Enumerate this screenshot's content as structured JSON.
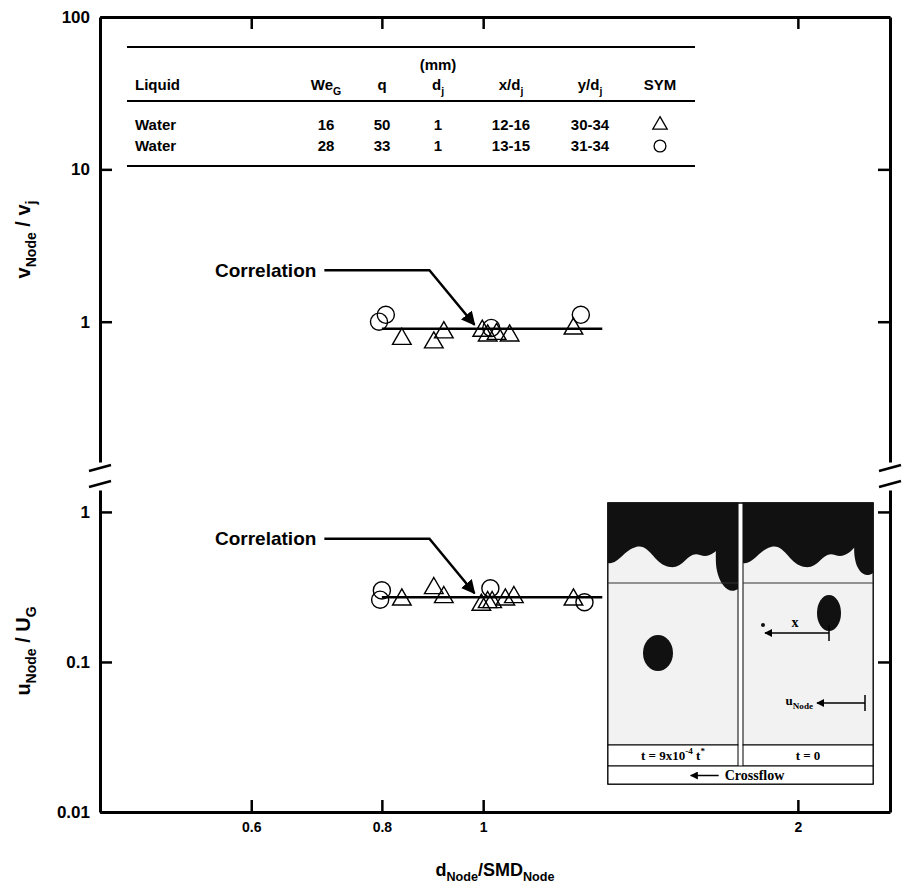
{
  "chart_data": [
    {
      "type": "scatter",
      "log": true,
      "tick_labels": "y",
      "ylabel": [
        {
          "text": "v"
        },
        {
          "text": "Node",
          "sub": true
        },
        {
          "text": " / v"
        },
        {
          "text": "j",
          "sub": true
        }
      ],
      "xlim": [
        0.43,
        2.45
      ],
      "xticks": [
        0.6,
        0.8,
        1,
        2
      ],
      "ylim": [
        0.12,
        100
      ],
      "yticks": [
        1,
        10,
        100
      ],
      "annotation": "Correlation",
      "series": [
        {
          "marker": "triangle",
          "color": "#000000",
          "x": [
            0.836,
            0.897,
            0.917,
            0.998,
            1.01,
            1.03,
            1.06,
            1.22
          ],
          "values": [
            0.77,
            0.73,
            0.85,
            0.87,
            0.81,
            0.83,
            0.81,
            0.9
          ]
        },
        {
          "marker": "circle",
          "color": "#000000",
          "x": [
            0.795,
            0.807,
            1.018,
            1.24
          ],
          "values": [
            1.0,
            1.11,
            0.91,
            1.11
          ]
        },
        {
          "type": "line",
          "line_style": "solid",
          "color": "#000000",
          "x": [
            0.8,
            1.3
          ],
          "values": [
            0.9,
            0.9
          ]
        }
      ]
    },
    {
      "type": "scatter",
      "log": true,
      "xlabel": [
        {
          "text": "d"
        },
        {
          "text": "Node",
          "sub": true
        },
        {
          "text": "/SMD"
        },
        {
          "text": "Node",
          "sub": true
        }
      ],
      "ylabel": [
        {
          "text": "u"
        },
        {
          "text": "Node",
          "sub": true
        },
        {
          "text": " / U"
        },
        {
          "text": "G",
          "sub": true
        }
      ],
      "xlim": [
        0.43,
        2.45
      ],
      "xticks": [
        0.6,
        0.8,
        1,
        2
      ],
      "ylim": [
        0.01,
        1.4
      ],
      "yticks": [
        0.01,
        0.1,
        1
      ],
      "annotation": "Correlation",
      "series": [
        {
          "marker": "triangle",
          "color": "#000000",
          "x": [
            0.836,
            0.897,
            0.917,
            0.996,
            1.01,
            1.02,
            1.05,
            1.07,
            1.22
          ],
          "values": [
            0.26,
            0.31,
            0.27,
            0.24,
            0.25,
            0.25,
            0.26,
            0.27,
            0.26
          ]
        },
        {
          "marker": "circle",
          "color": "#000000",
          "x": [
            0.797,
            0.8,
            1.016,
            1.25
          ],
          "values": [
            0.26,
            0.3,
            0.31,
            0.25
          ]
        },
        {
          "type": "line",
          "line_style": "solid",
          "color": "#000000",
          "x": [
            0.8,
            1.3
          ],
          "values": [
            0.27,
            0.27
          ]
        }
      ]
    }
  ],
  "table": {
    "header": [
      {
        "parts": [
          {
            "text": "Liquid"
          }
        ]
      },
      {
        "parts": [
          {
            "text": "We"
          },
          {
            "text": "G",
            "sub": true
          }
        ]
      },
      {
        "parts": [
          {
            "text": "q"
          }
        ]
      },
      {
        "above": "(mm)",
        "parts": [
          {
            "text": "d"
          },
          {
            "text": "j",
            "sub": true
          }
        ]
      },
      {
        "parts": [
          {
            "text": "x/d"
          },
          {
            "text": "j",
            "sub": true
          }
        ]
      },
      {
        "parts": [
          {
            "text": "y/d"
          },
          {
            "text": "j",
            "sub": true
          }
        ]
      },
      {
        "parts": [
          {
            "text": "SYM"
          }
        ]
      }
    ],
    "rows": [
      [
        "Water",
        16,
        50,
        1,
        "12-16",
        "30-34"
      ],
      [
        "Water",
        28,
        33,
        1,
        "13-15",
        "31-34"
      ]
    ]
  },
  "inset": {
    "frames": [
      {
        "label": [
          {
            "text": "t = 9x10"
          },
          {
            "text": "-4",
            "sup": true
          },
          {
            "text": " t"
          },
          {
            "text": "*",
            "sup": true
          }
        ]
      },
      {
        "label": [
          {
            "text": "t = 0"
          }
        ],
        "x_label": "x",
        "u_label": [
          {
            "text": "u"
          },
          {
            "text": "Node",
            "sub": true
          }
        ]
      }
    ],
    "caption": "Crossflow"
  }
}
